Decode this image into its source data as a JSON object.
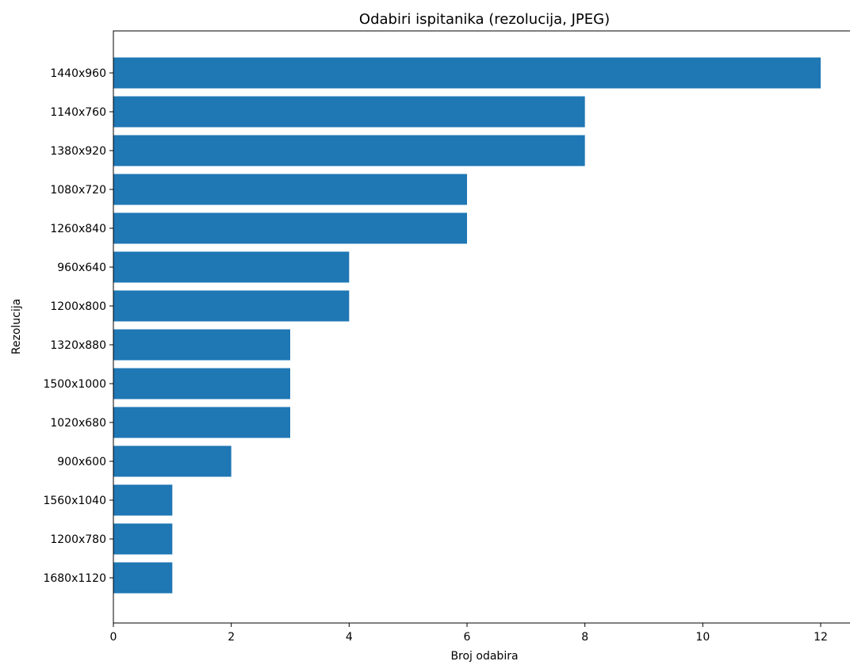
{
  "chart_data": {
    "type": "bar",
    "orientation": "horizontal",
    "title": "Odabiri ispitanika (rezolucija, JPEG)",
    "xlabel": "Broj odabira",
    "ylabel": "Rezolucija",
    "categories": [
      "1440x960",
      "1140x760",
      "1380x920",
      "1080x720",
      "1260x840",
      "960x640",
      "1200x800",
      "1320x880",
      "1500x1000",
      "1020x680",
      "900x600",
      "1560x1040",
      "1200x780",
      "1680x1120"
    ],
    "values": [
      12,
      8,
      8,
      6,
      6,
      4,
      4,
      3,
      3,
      3,
      2,
      1,
      1,
      1
    ],
    "xlim": [
      0,
      12.6
    ],
    "xticks": [
      0,
      2,
      4,
      6,
      8,
      10,
      12
    ],
    "grid": false,
    "legend": "none",
    "bar_color": "#1f77b4"
  }
}
